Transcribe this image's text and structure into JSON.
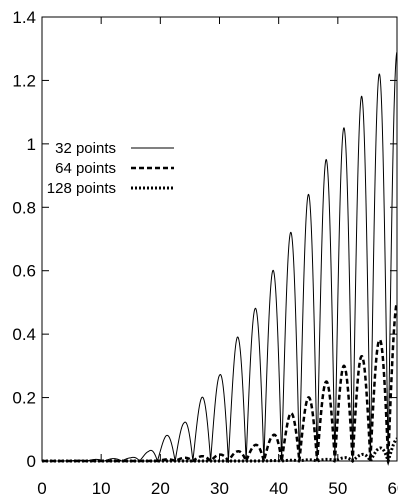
{
  "chart_data": {
    "type": "line",
    "title": "",
    "xlabel": "",
    "ylabel": "",
    "xlim": [
      0,
      60
    ],
    "ylim": [
      0,
      1.4
    ],
    "x_ticks": [
      "0",
      "10",
      "20",
      "30",
      "40",
      "50",
      "60"
    ],
    "y_ticks": [
      "0",
      "0.2",
      "0.4",
      "0.6",
      "0.8",
      "1",
      "1.2",
      "1.4"
    ],
    "grid": false,
    "legend_position": "left",
    "series": [
      {
        "name": "32 points",
        "style": "solid",
        "color": "#000000",
        "oscillation_period": 3.0,
        "first_peak_x": 15.0,
        "peaks_x": [
          15,
          18,
          21,
          24,
          27,
          30,
          33,
          36,
          39,
          42,
          45,
          48,
          51,
          54,
          57,
          60
        ],
        "peaks_y": [
          0.01,
          0.03,
          0.08,
          0.12,
          0.2,
          0.27,
          0.39,
          0.48,
          0.6,
          0.72,
          0.84,
          0.95,
          1.05,
          1.15,
          1.22,
          1.29
        ]
      },
      {
        "name": "64 points",
        "style": "dashed",
        "color": "#000000",
        "oscillation_period": 3.0,
        "first_peak_x": 15.0,
        "peaks_x": [
          30,
          33,
          36,
          39,
          42,
          45,
          48,
          51,
          54,
          57,
          60
        ],
        "peaks_y": [
          0.02,
          0.03,
          0.05,
          0.08,
          0.15,
          0.2,
          0.25,
          0.3,
          0.33,
          0.38,
          0.5
        ]
      },
      {
        "name": "128 points",
        "style": "dotted",
        "color": "#000000",
        "oscillation_period": 3.0,
        "first_peak_x": 15.0,
        "peaks_x": [
          48,
          51,
          54,
          57,
          60
        ],
        "peaks_y": [
          0.005,
          0.01,
          0.02,
          0.04,
          0.07
        ]
      }
    ]
  }
}
